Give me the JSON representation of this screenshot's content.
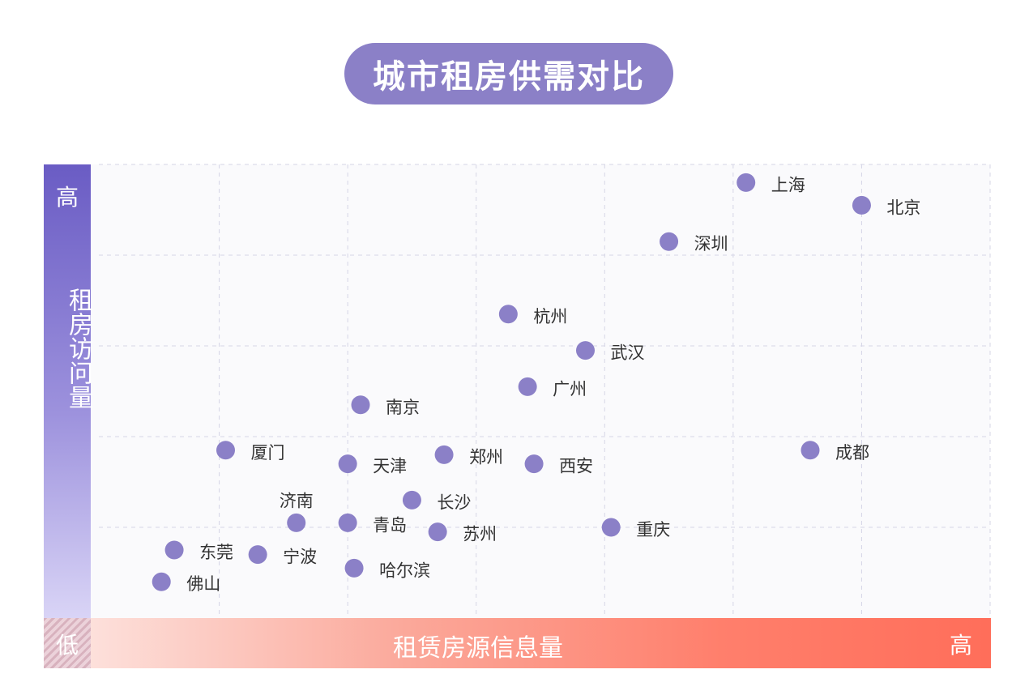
{
  "chart_data": {
    "type": "scatter",
    "title": "城市租房供需对比",
    "xlabel": "租赁房源信息量",
    "ylabel": "租房访问量",
    "x_high_label": "高",
    "y_high_label": "高",
    "low_label": "低",
    "xlim": [
      0,
      7
    ],
    "ylim": [
      0,
      5
    ],
    "grid": true,
    "points": [
      {
        "name": "上海",
        "x": 5.1,
        "y": 4.8
      },
      {
        "name": "北京",
        "x": 6.0,
        "y": 4.55
      },
      {
        "name": "深圳",
        "x": 4.5,
        "y": 4.15
      },
      {
        "name": "杭州",
        "x": 3.25,
        "y": 3.35
      },
      {
        "name": "武汉",
        "x": 3.85,
        "y": 2.95
      },
      {
        "name": "广州",
        "x": 3.4,
        "y": 2.55
      },
      {
        "name": "南京",
        "x": 2.1,
        "y": 2.35
      },
      {
        "name": "成都",
        "x": 5.6,
        "y": 1.85
      },
      {
        "name": "厦门",
        "x": 1.05,
        "y": 1.85
      },
      {
        "name": "郑州",
        "x": 2.75,
        "y": 1.8
      },
      {
        "name": "天津",
        "x": 2.0,
        "y": 1.7
      },
      {
        "name": "西安",
        "x": 3.45,
        "y": 1.7
      },
      {
        "name": "长沙",
        "x": 2.5,
        "y": 1.3
      },
      {
        "name": "济南",
        "x": 1.6,
        "y": 1.05
      },
      {
        "name": "青岛",
        "x": 2.0,
        "y": 1.05
      },
      {
        "name": "苏州",
        "x": 2.7,
        "y": 0.95
      },
      {
        "name": "重庆",
        "x": 4.05,
        "y": 1.0
      },
      {
        "name": "东莞",
        "x": 0.65,
        "y": 0.75
      },
      {
        "name": "宁波",
        "x": 1.3,
        "y": 0.7
      },
      {
        "name": "哈尔滨",
        "x": 2.05,
        "y": 0.55
      },
      {
        "name": "佛山",
        "x": 0.55,
        "y": 0.4
      }
    ]
  },
  "colors": {
    "point": "#8b80c7",
    "title_bg": "#8b80c7"
  }
}
